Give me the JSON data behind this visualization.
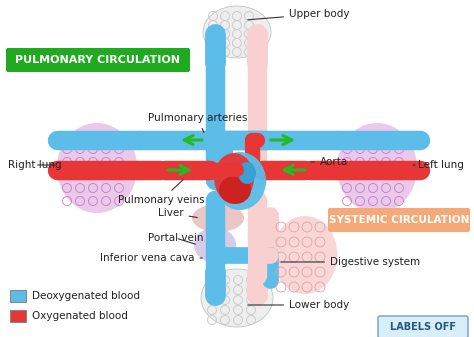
{
  "bg_color": "#ffffff",
  "pulmonary_label": "PULMONARY CIRCULATION",
  "pulmonary_bg": "#1faa1f",
  "systemic_label": "SYSTEMIC CIRCULATION",
  "systemic_bg": "#f5a878",
  "blue_color": "#5bbde8",
  "blue_dark": "#3a9fd4",
  "red_color": "#e83535",
  "pink_color": "#f5b0b0",
  "light_pink": "#f8d0d0",
  "lung_color": "#e8c0e8",
  "lung_vein_color": "#d090d0",
  "organ_pink": "#f0c8c8",
  "organ_blue": "#c8dce8",
  "green_arrow": "#22bb22",
  "body_blob": "#e0e0e0",
  "body_net": "#c0c0c0",
  "label_color": "#222222",
  "labels": {
    "upper_body": "Upper body",
    "lower_body": "Lower body",
    "right_lung": "Right lung",
    "left_lung": "Left lung",
    "pulmonary_arteries": "Pulmonary arteries",
    "pulmonary_veins": "Pulmonary veins",
    "aorta": "Aorta",
    "liver": "Liver",
    "portal_vein": "Portal vein",
    "inferior_vena_cava": "Inferior vena cava",
    "digestive_system": "Digestive system",
    "deoxy_label": "Deoxygenated blood",
    "oxy_label": "Oxygenated blood",
    "labels_off": "LABELS OFF"
  }
}
